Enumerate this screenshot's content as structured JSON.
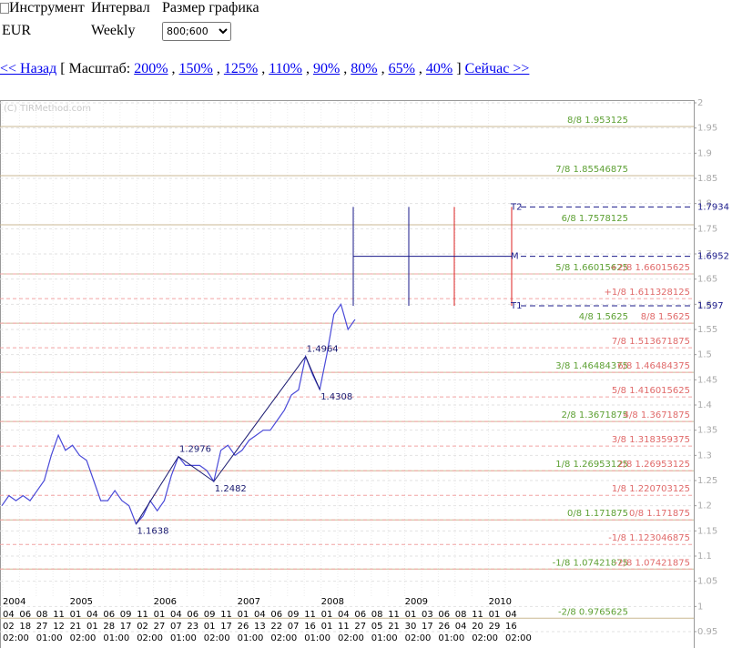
{
  "form": {
    "headers": [
      "Инструмент",
      "Интервал",
      "Размер графика"
    ],
    "instrument": "EUR",
    "interval": "Weekly",
    "size": "800;600"
  },
  "nav": {
    "back": "<< Назад",
    "open_bracket": "[",
    "scale_label": "Масштаб:",
    "scales": [
      "200%",
      "150%",
      "125%",
      "110%",
      "90%",
      "80%",
      "65%",
      "40%"
    ],
    "separator": ",",
    "close_bracket": "]",
    "now": "Сейчас >>"
  },
  "chart_data": {
    "type": "line",
    "watermark": "(C) TIRMethod.com",
    "ylim": [
      0.95,
      2
    ],
    "yticks": [
      0.95,
      1,
      1.05,
      1.1,
      1.15,
      1.2,
      1.25,
      1.3,
      1.35,
      1.4,
      1.45,
      1.5,
      1.55,
      1.6,
      1.65,
      1.7,
      1.75,
      1.8,
      1.85,
      1.9,
      1.95,
      2
    ],
    "grid": true,
    "x_axis": {
      "years": [
        "2004",
        null,
        null,
        null,
        "2005",
        null,
        null,
        null,
        null,
        "2006",
        null,
        null,
        null,
        null,
        "2007",
        null,
        null,
        null,
        null,
        "2008",
        null,
        null,
        null,
        null,
        "2009",
        null,
        null,
        null,
        null,
        "2010",
        null
      ],
      "months": [
        "04",
        "06",
        "08",
        "11",
        "01",
        "04",
        "06",
        "09",
        "11",
        "01",
        "04",
        "06",
        "09",
        "11",
        "01",
        "04",
        "06",
        "09",
        "11",
        "01",
        "04",
        "06",
        "08",
        "11",
        "01",
        "03",
        "06",
        "08",
        "11",
        "01",
        "04"
      ],
      "days": [
        "02",
        "18",
        "27",
        "12",
        "21",
        "01",
        "28",
        "17",
        "02",
        "27",
        "07",
        "23",
        "01",
        "17",
        "26",
        "13",
        "22",
        "07",
        "16",
        "01",
        "11",
        "27",
        "05",
        "21",
        "30",
        "17",
        "26",
        "04",
        "20",
        "29",
        "16"
      ],
      "times": [
        "02:00",
        null,
        "01:00",
        null,
        "02:00",
        null,
        "01:00",
        null,
        "02:00",
        null,
        "01:00",
        null,
        "02:00",
        null,
        "01:00",
        null,
        "02:00",
        null,
        "01:00",
        null,
        "02:00",
        null,
        "01:00",
        null,
        "02:00",
        null,
        "01:00",
        null,
        "02:00",
        null,
        "02:00"
      ]
    },
    "series": [
      {
        "color": "#4a4ad8",
        "values": [
          1.2,
          1.22,
          1.21,
          1.22,
          1.21,
          1.23,
          1.25,
          1.3,
          1.34,
          1.31,
          1.32,
          1.3,
          1.29,
          1.25,
          1.21,
          1.21,
          1.23,
          1.21,
          1.2,
          1.1638,
          1.18,
          1.21,
          1.19,
          1.21,
          1.26,
          1.2976,
          1.28,
          1.28,
          1.28,
          1.27,
          1.2482,
          1.31,
          1.32,
          1.3,
          1.31,
          1.33,
          1.34,
          1.35,
          1.35,
          1.37,
          1.39,
          1.42,
          1.43,
          1.4964,
          1.46,
          1.4308,
          1.5,
          1.58,
          1.6,
          1.55,
          1.57
        ]
      },
      {
        "color": "#1a1a70",
        "values": [
          null,
          null,
          null,
          null,
          null,
          null,
          null,
          null,
          null,
          null,
          null,
          null,
          null,
          null,
          null,
          null,
          null,
          null,
          null,
          1.1638,
          null,
          null,
          null,
          null,
          null,
          1.2976,
          null,
          null,
          null,
          null,
          1.2482,
          null,
          null,
          null,
          null,
          null,
          null,
          null,
          null,
          null,
          null,
          null,
          null,
          1.4964,
          null,
          1.4308,
          null,
          null,
          null,
          null,
          null
        ]
      }
    ],
    "levels_green": [
      {
        "name": "8/8",
        "value": 1.953125
      },
      {
        "name": "7/8",
        "value": 1.85546875
      },
      {
        "name": "6/8",
        "value": 1.7578125
      },
      {
        "name": "5/8",
        "value": 1.66015625
      },
      {
        "name": "4/8",
        "value": 1.5625
      },
      {
        "name": "3/8",
        "value": 1.46484375
      },
      {
        "name": "2/8",
        "value": 1.3671875
      },
      {
        "name": "1/8",
        "value": 1.26953125
      },
      {
        "name": "0/8",
        "value": 1.171875
      },
      {
        "name": "-1/8",
        "value": 1.07421875
      },
      {
        "name": "-2/8",
        "value": 0.9765625
      }
    ],
    "levels_red": [
      {
        "name": "+2/8",
        "value": 1.66015625
      },
      {
        "name": "+1/8",
        "value": 1.611328125
      },
      {
        "name": "8/8",
        "value": 1.5625
      },
      {
        "name": "7/8",
        "value": 1.513671875
      },
      {
        "name": "6/8",
        "value": 1.46484375
      },
      {
        "name": "5/8",
        "value": 1.416015625
      },
      {
        "name": "4/8",
        "value": 1.3671875
      },
      {
        "name": "3/8",
        "value": 1.318359375
      },
      {
        "name": "2/8",
        "value": 1.26953125
      },
      {
        "name": "1/8",
        "value": 1.220703125
      },
      {
        "name": "0/8",
        "value": 1.171875
      },
      {
        "name": "-1/8",
        "value": 1.123046875
      },
      {
        "name": "-2/8",
        "value": 1.07421875
      }
    ],
    "targets": [
      {
        "name": "T2",
        "value": 1.7934
      },
      {
        "name": "M",
        "value": 1.6952
      },
      {
        "name": "T1",
        "value": 1.597
      }
    ]
  }
}
